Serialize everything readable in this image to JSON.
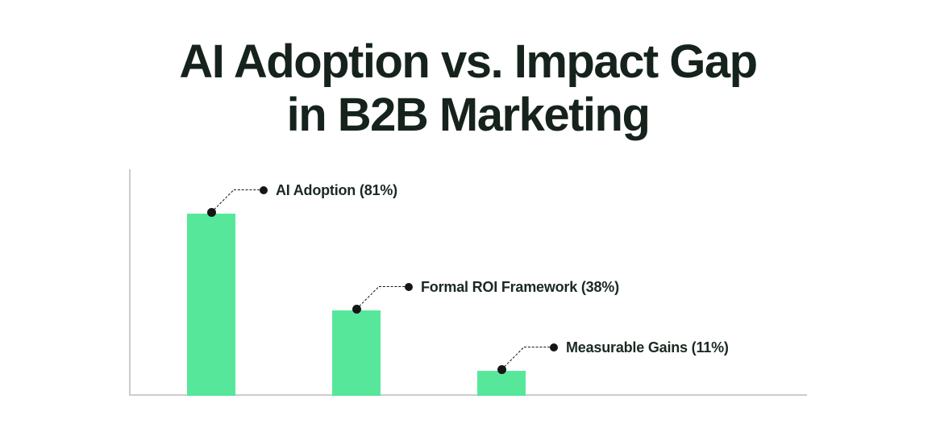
{
  "chart_data": {
    "type": "bar",
    "title": "AI Adoption vs. Impact Gap in B2B Marketing",
    "title_lines": [
      "AI Adoption vs. Impact Gap",
      "in B2B Marketing"
    ],
    "categories": [
      "AI Adoption",
      "Formal ROI Framework",
      "Measurable Gains"
    ],
    "values": [
      81,
      38,
      11
    ],
    "unit": "%",
    "ylim": [
      0,
      100
    ],
    "xlabel": "",
    "ylabel": "",
    "grid": false,
    "legend": "none",
    "annotation_style": "dashed-elbow-callouts-with-dots",
    "points": [
      {
        "category": "AI Adoption",
        "value": 81,
        "label": "AI Adoption (81%)"
      },
      {
        "category": "Formal ROI Framework",
        "value": 38,
        "label": "Formal ROI Framework (38%)"
      },
      {
        "category": "Measurable Gains",
        "value": 11,
        "label": "Measurable Gains (11%)"
      }
    ],
    "colors": {
      "bar": "#57E79B",
      "axis": "#CCCCCC",
      "title_text": "#16231C",
      "label_text": "#1B2A21",
      "marker": "#161616",
      "background": "#FFFFFF"
    }
  }
}
